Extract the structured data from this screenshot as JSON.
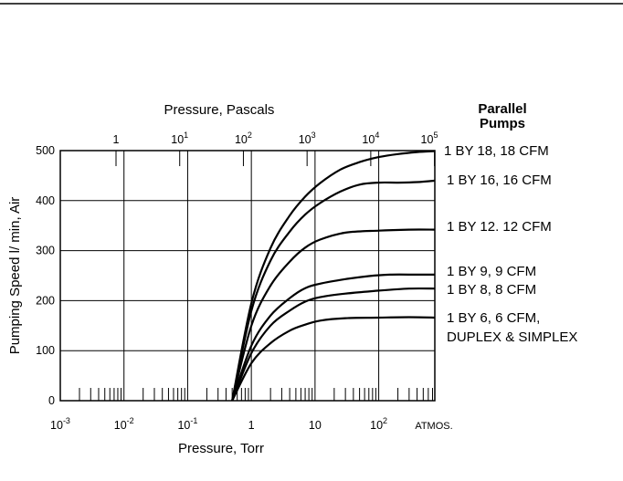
{
  "chart_data": {
    "type": "line",
    "title": "",
    "xlabel": "Pressure, Torr",
    "x2label": "Pressure, Pascals",
    "ylabel": "Pumping Speed l/ min, Air",
    "xscale": "log",
    "xlim": [
      0.001,
      760
    ],
    "ylim": [
      0,
      500
    ],
    "grid": true,
    "y_ticks": [
      "0",
      "100",
      "200",
      "300",
      "400",
      "500"
    ],
    "x_ticks": [
      {
        "base": "10",
        "exp": "-3"
      },
      {
        "base": "10",
        "exp": "-2"
      },
      {
        "base": "10",
        "exp": "-1"
      },
      {
        "base": "1",
        "exp": ""
      },
      {
        "base": "10",
        "exp": ""
      },
      {
        "base": "10",
        "exp": "2"
      },
      {
        "base": "ATMOS.",
        "exp": ""
      }
    ],
    "x2_ticks": [
      {
        "base": "1",
        "exp": ""
      },
      {
        "base": "10",
        "exp": "1"
      },
      {
        "base": "10",
        "exp": "2"
      },
      {
        "base": "10",
        "exp": "3"
      },
      {
        "base": "10",
        "exp": "4"
      },
      {
        "base": "10",
        "exp": "5"
      }
    ],
    "legend_title": "Parallel Pumps",
    "legend_title_lines": [
      "Parallel",
      "Pumps"
    ],
    "series": [
      {
        "name": "1 BY 18, 18 CFM",
        "label_lines": [
          "1 BY 18, 18 CFM"
        ],
        "points": [
          [
            0.5,
            0
          ],
          [
            1,
            195
          ],
          [
            2,
            305
          ],
          [
            4,
            370
          ],
          [
            7,
            408
          ],
          [
            12,
            435
          ],
          [
            25,
            462
          ],
          [
            50,
            477
          ],
          [
            100,
            487
          ],
          [
            200,
            493
          ],
          [
            400,
            497
          ],
          [
            760,
            499
          ]
        ]
      },
      {
        "name": "1 BY 16, 16 CFM",
        "label_lines": [
          "1 BY 16, 16 CFM"
        ],
        "points": [
          [
            0.5,
            0
          ],
          [
            1,
            180
          ],
          [
            2,
            280
          ],
          [
            4,
            338
          ],
          [
            7,
            372
          ],
          [
            12,
            395
          ],
          [
            25,
            418
          ],
          [
            50,
            432
          ],
          [
            100,
            436
          ],
          [
            200,
            436
          ],
          [
            400,
            437
          ],
          [
            760,
            440
          ]
        ]
      },
      {
        "name": "1 BY 12. 12 CFM",
        "label_lines": [
          "1 BY 12. 12 CFM"
        ],
        "points": [
          [
            0.5,
            0
          ],
          [
            1,
            150
          ],
          [
            2,
            230
          ],
          [
            4,
            278
          ],
          [
            7,
            306
          ],
          [
            12,
            322
          ],
          [
            30,
            336
          ],
          [
            100,
            340
          ],
          [
            300,
            342
          ],
          [
            760,
            342
          ]
        ]
      },
      {
        "name": "1 BY 9, 9 CFM",
        "label_lines": [
          "1 BY 9, 9 CFM"
        ],
        "points": [
          [
            0.5,
            0
          ],
          [
            1,
            110
          ],
          [
            2,
            170
          ],
          [
            4,
            205
          ],
          [
            7,
            225
          ],
          [
            12,
            234
          ],
          [
            30,
            243
          ],
          [
            70,
            249
          ],
          [
            150,
            252
          ],
          [
            400,
            252
          ],
          [
            760,
            252
          ]
        ]
      },
      {
        "name": "1 BY 8, 8 CFM",
        "label_lines": [
          "1 BY 8, 8 CFM"
        ],
        "points": [
          [
            0.5,
            0
          ],
          [
            1,
            95
          ],
          [
            2,
            150
          ],
          [
            4,
            180
          ],
          [
            7,
            198
          ],
          [
            12,
            207
          ],
          [
            30,
            214
          ],
          [
            100,
            220
          ],
          [
            300,
            224
          ],
          [
            760,
            224
          ]
        ]
      },
      {
        "name": "1 BY 6, 6 CFM, DUPLEX & SIMPLEX",
        "label_lines": [
          "1 BY 6, 6 CFM,",
          "DUPLEX & SIMPLEX"
        ],
        "points": [
          [
            0.5,
            0
          ],
          [
            1,
            75
          ],
          [
            2,
            115
          ],
          [
            4,
            140
          ],
          [
            7,
            152
          ],
          [
            12,
            160
          ],
          [
            30,
            165
          ],
          [
            100,
            166
          ],
          [
            300,
            167
          ],
          [
            760,
            166
          ]
        ]
      }
    ]
  }
}
